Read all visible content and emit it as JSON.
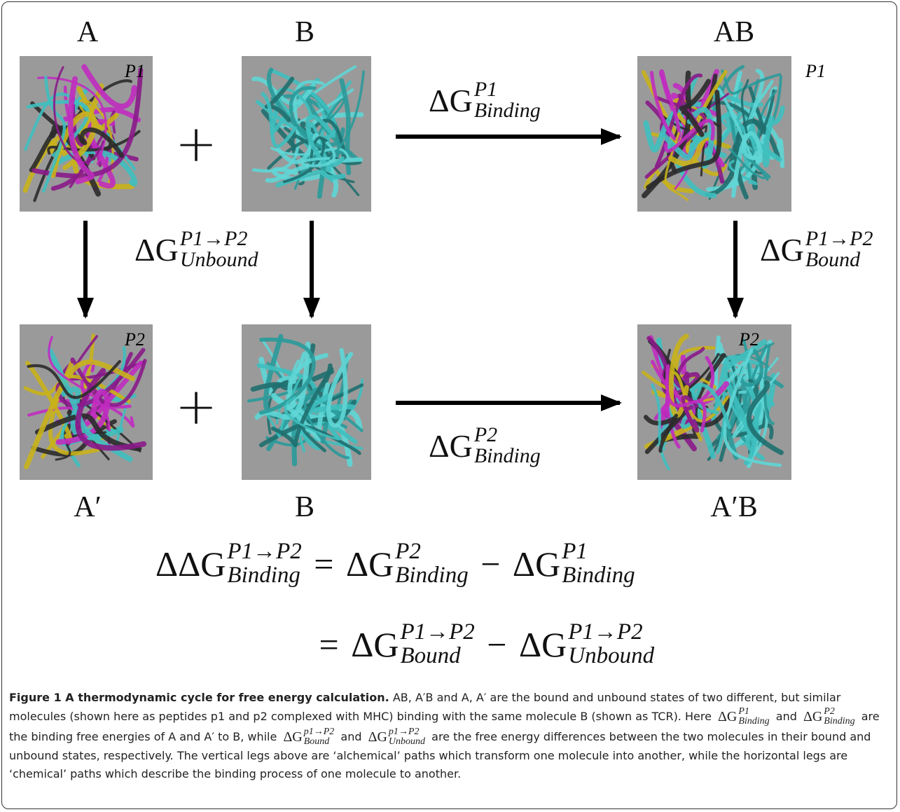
{
  "diagram": {
    "states": [
      {
        "label": "A",
        "tag": "P1"
      },
      {
        "label": "B"
      },
      {
        "label": "AB",
        "tag": "P1"
      },
      {
        "label": "A′",
        "tag": "P2"
      },
      {
        "label": "B"
      },
      {
        "label": "A′B",
        "tag": "P2"
      }
    ],
    "operators": [
      "+",
      "+"
    ],
    "transitions": [
      {
        "base": "ΔG",
        "sup": "P1",
        "sub": "Binding"
      },
      {
        "base": "ΔG",
        "sup": "P1→P2",
        "sub": "Unbound"
      },
      {
        "base": "ΔG",
        "sup": "P1→P2",
        "sub": "Bound"
      },
      {
        "base": "ΔG",
        "sup": "P2",
        "sub": "Binding"
      }
    ],
    "equation": [
      [
        {
          "base": "ΔΔG",
          "sup": "P1→P2",
          "sub": "Binding"
        },
        {
          "op": "="
        },
        {
          "base": "ΔG",
          "sup": "P2",
          "sub": "Binding"
        },
        {
          "op": "−"
        },
        {
          "base": "ΔG",
          "sup": "P1",
          "sub": "Binding"
        }
      ],
      [
        {
          "op": "="
        },
        {
          "base": "ΔG",
          "sup": "P1→P2",
          "sub": "Bound"
        },
        {
          "op": "−"
        },
        {
          "base": "ΔG",
          "sup": "P1→P2",
          "sub": "Unbound"
        }
      ]
    ]
  },
  "caption": {
    "title": "Figure 1 A thermodynamic cycle for free energy calculation.",
    "parts": [
      {
        "text": "AB, A′B and A, A′ are the bound and unbound states of two different, but similar molecules (shown here as peptides p1 and p2 complexed with MHC) binding with the same molecule B (shown as TCR). Here"
      },
      {
        "math": {
          "base": "ΔG",
          "sup": "P1",
          "sub": "Binding"
        }
      },
      {
        "text": "and"
      },
      {
        "math": {
          "base": "ΔG",
          "sup": "P2",
          "sub": "Binding"
        }
      },
      {
        "text": "are the binding free energies of A and A′ to B, while"
      },
      {
        "math": {
          "base": "ΔG",
          "sup": "p1→P2",
          "sub": "Bound"
        }
      },
      {
        "text": "and"
      },
      {
        "math": {
          "base": "ΔG",
          "sup": "p1→P2",
          "sub": "Unbound"
        }
      },
      {
        "text": "are the free energy differences between the two molecules in their bound and unbound states, respectively. The vertical legs above are ‘alchemical’ paths which transform one molecule into another, while the horizontal legs are ‘chemical’ paths which describe the binding process of one molecule to another."
      }
    ]
  }
}
